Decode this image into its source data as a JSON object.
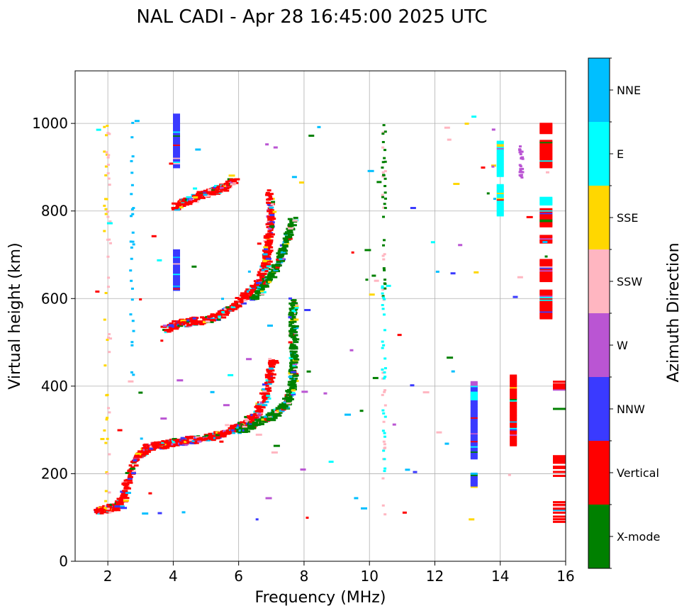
{
  "chart_data": {
    "type": "scatter",
    "title": "NAL CADI - Apr 28 16:45:00 2025 UTC",
    "xlabel": "Frequency (MHz)",
    "ylabel": "Virtual height (km)",
    "xlim": [
      1,
      16
    ],
    "ylim": [
      0,
      1120
    ],
    "x_ticks": [
      2,
      4,
      6,
      8,
      10,
      12,
      14,
      16
    ],
    "y_ticks": [
      0,
      200,
      400,
      600,
      800,
      1000
    ],
    "grid": true,
    "colorbar": {
      "label": "Azimuth Direction",
      "categories": [
        {
          "name": "X-mode",
          "color": "#008000"
        },
        {
          "name": "Vertical",
          "color": "#ff0000"
        },
        {
          "name": "NNW",
          "color": "#3a3aff"
        },
        {
          "name": "W",
          "color": "#ba55d3"
        },
        {
          "name": "SSW",
          "color": "#ffb6c1"
        },
        {
          "name": "SSE",
          "color": "#ffd700"
        },
        {
          "name": "E",
          "color": "#00ffff"
        },
        {
          "name": "NNE",
          "color": "#00bfff"
        }
      ]
    },
    "traces": [
      {
        "name": "Vertical",
        "points": [
          [
            1.6,
            115
          ],
          [
            1.8,
            118
          ],
          [
            2.0,
            120
          ],
          [
            2.2,
            125
          ],
          [
            2.4,
            140
          ],
          [
            2.5,
            180
          ],
          [
            2.8,
            235
          ],
          [
            3.0,
            250
          ],
          [
            3.2,
            262
          ],
          [
            3.5,
            265
          ],
          [
            3.8,
            268
          ],
          [
            4.0,
            272
          ],
          [
            4.3,
            275
          ],
          [
            4.6,
            278
          ],
          [
            5.0,
            282
          ],
          [
            5.3,
            288
          ],
          [
            5.6,
            295
          ],
          [
            5.9,
            305
          ],
          [
            6.2,
            320
          ],
          [
            6.5,
            340
          ],
          [
            6.7,
            370
          ],
          [
            6.8,
            400
          ],
          [
            6.9,
            430
          ],
          [
            7.0,
            460
          ]
        ]
      },
      {
        "name": "X-mode",
        "points": [
          [
            5.9,
            300
          ],
          [
            6.2,
            305
          ],
          [
            6.5,
            315
          ],
          [
            6.8,
            325
          ],
          [
            7.0,
            335
          ],
          [
            7.2,
            345
          ],
          [
            7.4,
            360
          ],
          [
            7.5,
            380
          ],
          [
            7.6,
            410
          ],
          [
            7.6,
            450
          ],
          [
            7.6,
            480
          ],
          [
            7.6,
            520
          ],
          [
            7.6,
            560
          ],
          [
            7.6,
            600
          ]
        ]
      },
      {
        "name": "Vertical",
        "points": [
          [
            3.7,
            530
          ],
          [
            4.0,
            540
          ],
          [
            4.3,
            545
          ],
          [
            4.6,
            548
          ],
          [
            5.0,
            552
          ],
          [
            5.3,
            560
          ],
          [
            5.6,
            575
          ],
          [
            5.9,
            590
          ],
          [
            6.2,
            610
          ],
          [
            6.5,
            630
          ],
          [
            6.7,
            660
          ],
          [
            6.8,
            690
          ],
          [
            6.8,
            720
          ],
          [
            6.9,
            760
          ],
          [
            6.9,
            800
          ],
          [
            6.9,
            850
          ]
        ]
      },
      {
        "name": "X-mode",
        "points": [
          [
            6.4,
            600
          ],
          [
            6.6,
            620
          ],
          [
            6.8,
            640
          ],
          [
            7.0,
            660
          ],
          [
            7.2,
            690
          ],
          [
            7.3,
            720
          ],
          [
            7.5,
            750
          ],
          [
            7.6,
            780
          ]
        ]
      },
      {
        "name": "Vertical",
        "points": [
          [
            4.0,
            810
          ],
          [
            4.3,
            820
          ],
          [
            4.6,
            830
          ],
          [
            5.0,
            842
          ],
          [
            5.3,
            850
          ],
          [
            5.6,
            858
          ],
          [
            5.8,
            870
          ]
        ]
      }
    ],
    "columns": [
      {
        "name": "NNW",
        "x": 13.2,
        "y": [
          170,
          200
        ]
      },
      {
        "name": "NNW",
        "x": 13.2,
        "y": [
          235,
          400
        ]
      },
      {
        "name": "W",
        "x": 13.2,
        "y": [
          400,
          410
        ]
      },
      {
        "name": "E",
        "x": 13.2,
        "y": [
          370,
          385
        ]
      },
      {
        "name": "Vertical",
        "x": 14.4,
        "y": [
          265,
          425
        ]
      },
      {
        "name": "Vertical",
        "x": 15.4,
        "y": [
          555,
          620
        ]
      },
      {
        "name": "Vertical",
        "x": 15.4,
        "y": [
          640,
          690
        ]
      },
      {
        "name": "Vertical",
        "x": 15.4,
        "y": [
          728,
          745
        ]
      },
      {
        "name": "Vertical",
        "x": 15.4,
        "y": [
          765,
          805
        ]
      },
      {
        "name": "E",
        "x": 15.4,
        "y": [
          815,
          830
        ]
      },
      {
        "name": "Vertical",
        "x": 15.4,
        "y": [
          900,
          960
        ]
      },
      {
        "name": "Vertical",
        "x": 15.4,
        "y": [
          978,
          1000
        ]
      },
      {
        "name": "E",
        "x": 14.0,
        "y": [
          790,
          860
        ]
      },
      {
        "name": "E",
        "x": 14.0,
        "y": [
          880,
          960
        ]
      },
      {
        "name": "NNW",
        "x": 4.1,
        "y": [
          620,
          710
        ]
      },
      {
        "name": "NNW",
        "x": 4.1,
        "y": [
          900,
          1020
        ]
      },
      {
        "name": "Vertical",
        "x": 15.85,
        "y": [
          90,
          140
        ]
      },
      {
        "name": "Vertical",
        "x": 15.85,
        "y": [
          195,
          240
        ]
      },
      {
        "name": "X-mode",
        "x": 15.85,
        "y": [
          345,
          350
        ]
      },
      {
        "name": "Vertical",
        "x": 15.85,
        "y": [
          392,
          412
        ]
      }
    ],
    "scatter_points": [
      {
        "name": "SSE",
        "x": 1.9,
        "y": [
          100,
          1000
        ]
      },
      {
        "name": "SSW",
        "x": 2.0,
        "y": [
          90,
          990
        ]
      },
      {
        "name": "SSW",
        "x": 10.4,
        "y": [
          90,
          980
        ]
      },
      {
        "name": "X-mode",
        "x": 10.4,
        "y": [
          600,
          1000
        ]
      },
      {
        "name": "E",
        "x": 10.4,
        "y": [
          200,
          650
        ]
      },
      {
        "name": "NNE",
        "x": 2.7,
        "y": [
          400,
          1015
        ]
      },
      {
        "name": "W",
        "x": 14.6,
        "y": [
          875,
          950
        ]
      }
    ]
  }
}
